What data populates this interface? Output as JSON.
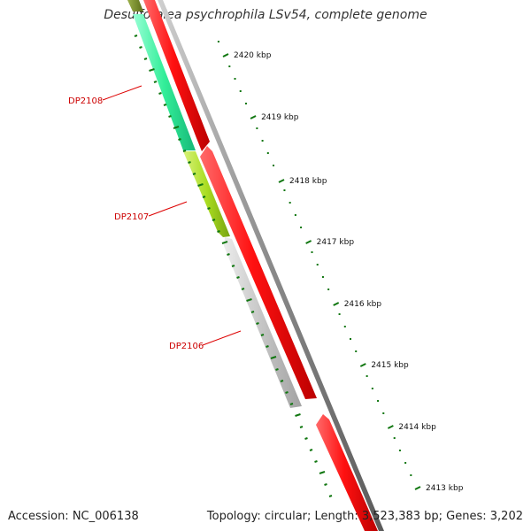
{
  "title": "Desulfotalea psychrophila LSv54, complete genome",
  "accession_text": "Accession: NC_006138",
  "summary_text": "Topology: circular; Length: 3,523,383 bp; Genes: 3,202",
  "colors": {
    "forward_feature": "#ff1111",
    "reverse_feature_1": "#33ee99",
    "reverse_feature_2": "#aadd22",
    "reverse_feature_3": "#c4c4c4",
    "backbone": "#888888",
    "tick": "#117711",
    "label_line": "#dd0000"
  },
  "scale_ticks": [
    "2420 kbp",
    "2419 kbp",
    "2418 kbp",
    "2417 kbp",
    "2416 kbp",
    "2415 kbp",
    "2414 kbp",
    "2413 kbp"
  ],
  "gene_labels": [
    "DP2108",
    "DP2107",
    "DP2106"
  ]
}
